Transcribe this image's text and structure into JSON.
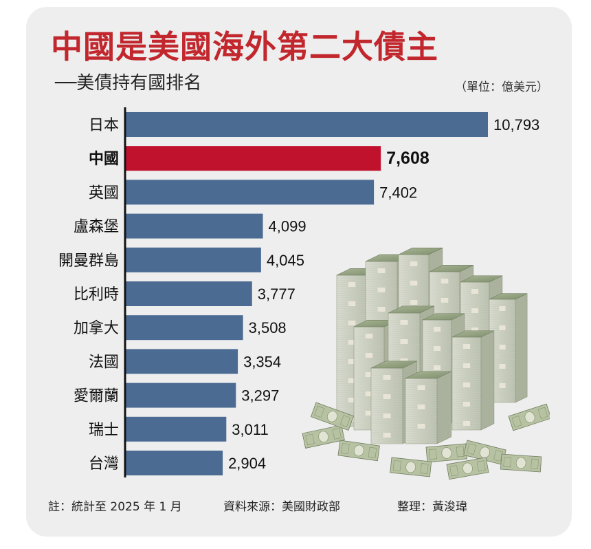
{
  "title": "中國是美國海外第二大債主",
  "subtitle": "──美債持有國排名",
  "unit": "（單位：億美元）",
  "notes": {
    "footnote": "註：統計至 2025 年 1 月",
    "source": "資料來源：美國財政部",
    "editor": "整理：黃浚瑋"
  },
  "colors": {
    "bar": "#4c6b93",
    "highlight": "#c0112d",
    "title": "#c1272d",
    "axis": "#111111",
    "card": "#eeeeee"
  },
  "chart_data": {
    "type": "bar",
    "orientation": "horizontal",
    "categories": [
      "日本",
      "中國",
      "英國",
      "盧森堡",
      "開曼群島",
      "比利時",
      "加拿大",
      "法國",
      "愛爾蘭",
      "瑞士",
      "台灣"
    ],
    "values": [
      10793,
      7608,
      7402,
      4099,
      4045,
      3777,
      3508,
      3354,
      3297,
      3011,
      2904
    ],
    "value_labels": [
      "10,793",
      "7,608",
      "7,402",
      "4,099",
      "4,045",
      "3,777",
      "3,508",
      "3,354",
      "3,297",
      "3,011",
      "2,904"
    ],
    "highlight_index": 1,
    "xlim": [
      0,
      10793
    ],
    "grid": false,
    "legend": "none"
  },
  "illustration": "money-stacks-illustration"
}
